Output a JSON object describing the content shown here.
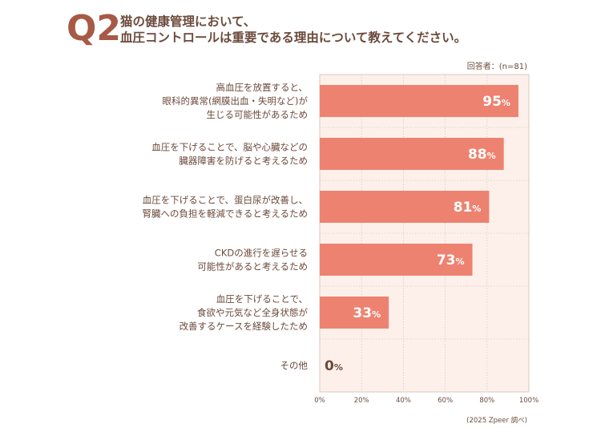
{
  "question": {
    "number": "Q2",
    "title_line1": "猫の健康管理において、",
    "title_line2": "血圧コントロールは重要である理由について教えてください。"
  },
  "respondents": "回答者：(n=81)",
  "source": "(2025 Zpeer 調べ)",
  "colors": {
    "bar": "#ee8270",
    "bar_border": "#e0705e",
    "plot_bg": "#fdf0ea",
    "grid": "#d9c9c2",
    "text": "#6b4a3c",
    "accent": "#a65a45"
  },
  "chart_data": {
    "type": "bar",
    "orientation": "horizontal",
    "categories": [
      [
        "高血圧を放置すると、",
        "眼科的異常(網膜出血・失明など)が",
        "生じる可能性があるため"
      ],
      [
        "血圧を下げることで、脳や心臓などの",
        "臓器障害を防げると考えるため"
      ],
      [
        "血圧を下げることで、蛋白尿が改善し、",
        "腎臓への負担を軽減できると考えるため"
      ],
      [
        "CKDの進行を遅らせる",
        "可能性があると考えるため"
      ],
      [
        "血圧を下げることで、",
        "食欲や元気など全身状態が",
        "改善するケースを経験したため"
      ],
      [
        "その他"
      ]
    ],
    "values": [
      95,
      88,
      81,
      73,
      33,
      0
    ],
    "value_labels": [
      "95%",
      "88%",
      "81%",
      "73%",
      "33%",
      "0%"
    ],
    "xlim": [
      0,
      100
    ],
    "xticks": [
      0,
      20,
      40,
      60,
      80,
      100
    ],
    "xtick_labels": [
      "0%",
      "20%",
      "40%",
      "60%",
      "80%",
      "100%"
    ],
    "grid": true
  }
}
